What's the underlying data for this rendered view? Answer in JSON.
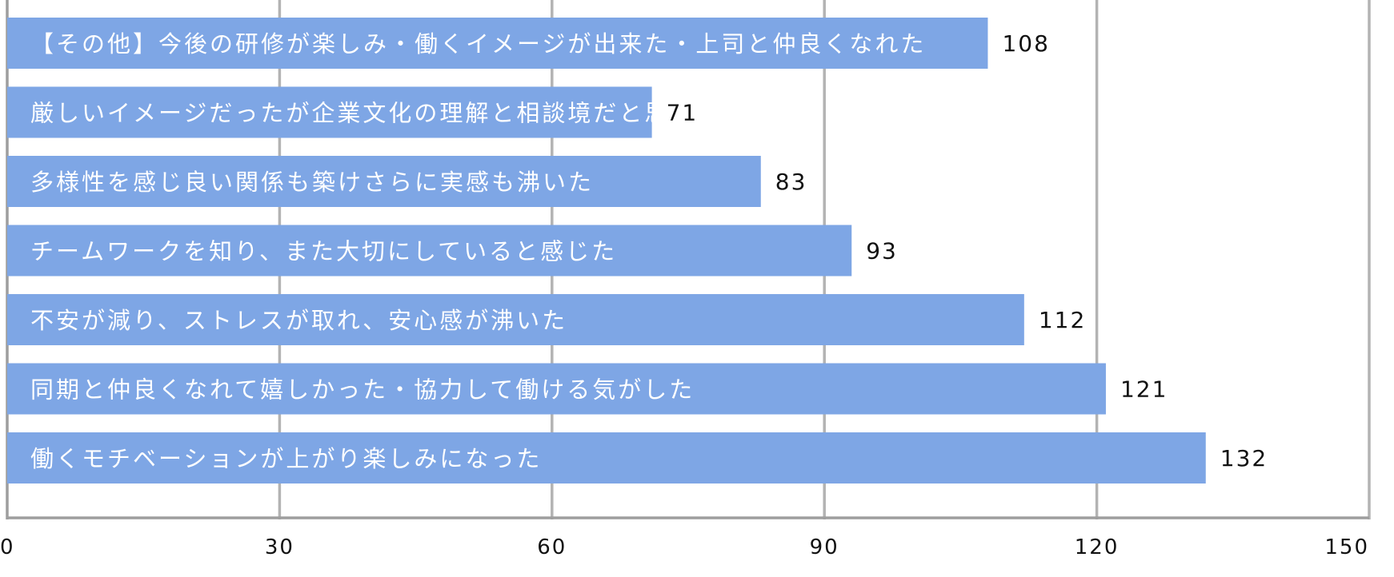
{
  "colors": {
    "bar": "#7ea6e5",
    "grid": "#b3b3b3",
    "axis": "#9e9e9e",
    "background": "#ffffff",
    "bar_text": "#ffffff",
    "value_text": "#111111"
  },
  "chart_data": {
    "type": "bar",
    "orientation": "horizontal",
    "title": "",
    "xlabel": "",
    "ylabel": "",
    "xlim": [
      0,
      150
    ],
    "x_ticks": [
      0,
      30,
      60,
      90,
      120,
      150
    ],
    "grid": true,
    "legend": "none",
    "categories": [
      "【その他】今後の研修が楽しみ・働くイメージが出来た・上司と仲良くなれた",
      "厳しいイメージだったが企業文化の理解と相談境だと思った",
      "多様性を感じ良い関係も築けさらに実感も沸いた",
      "チームワークを知り、また大切にしていると感じた",
      "不安が減り、ストレスが取れ、安心感が沸いた",
      "同期と仲良くなれて嬉しかった・協力して働ける気がした",
      "働くモチベーションが上がり楽しみになった"
    ],
    "values": [
      108,
      71,
      83,
      93,
      112,
      121,
      132
    ]
  }
}
